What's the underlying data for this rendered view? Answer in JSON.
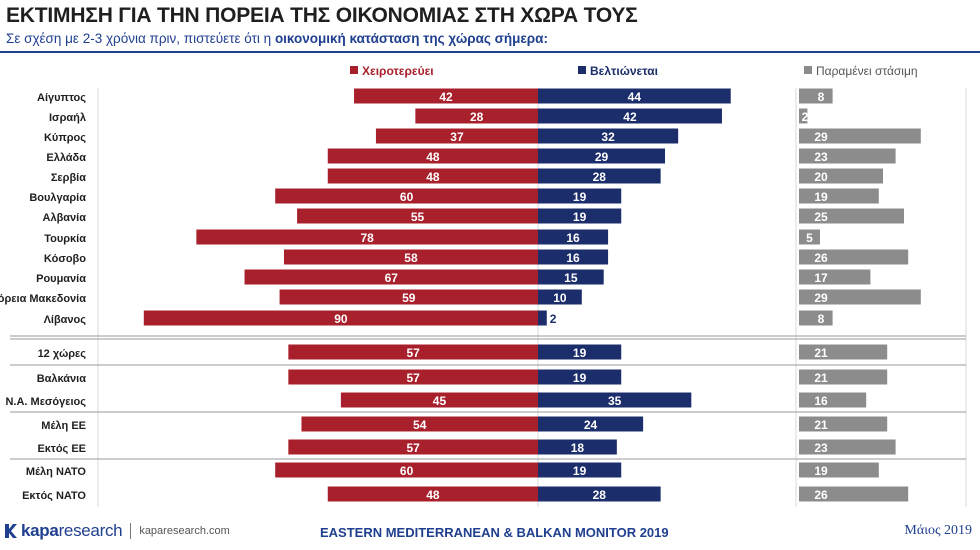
{
  "header": {
    "title": "ΕΚΤΙΜΗΣΗ ΓΙΑ ΤΗΝ ΠΟΡΕΙΑ ΤΗΣ ΟΙΚΟΝΟΜΙΑΣ ΣΤΗ ΧΩΡΑ ΤΟΥΣ",
    "subtitle_plain": "Σε σχέση με 2-3 χρόνια πριν, πιστεύετε ότι η ",
    "subtitle_bold": "οικονομική κατάσταση της χώρας σήμερα:"
  },
  "footer": {
    "logo_bold": "kapa",
    "logo_light": "research",
    "website": "kaparesearch.com",
    "center": "EASTERN MEDITERRANEAN & BALKAN MONITOR 2019",
    "date": "Μάιος 2019"
  },
  "colors": {
    "worse": "#a8202b",
    "better": "#1b2d6b",
    "same": "#8c8c8c",
    "grid": "#d9d9d9",
    "text": "#1f1f1f"
  },
  "chart_data": {
    "type": "bar",
    "orientation": "horizontal",
    "layout": "diverging with separate third panel",
    "categories": [
      "Αίγυπτος",
      "Ισραήλ",
      "Κύπρος",
      "Ελλάδα",
      "Σερβία",
      "Βουλγαρία",
      "Αλβανία",
      "Τουρκία",
      "Κόσοβο",
      "Ρουμανία",
      "Βόρεια Μακεδονία",
      "Λίβανος",
      "12 χώρες",
      "Βαλκάνια",
      "Ν.Α. Μεσόγειος",
      "Μέλη ΕΕ",
      "Εκτός ΕΕ",
      "Μέλη ΝΑΤΟ",
      "Εκτός ΝΑΤΟ"
    ],
    "series": [
      {
        "name": "Χειροτερεύει",
        "values": [
          42,
          28,
          37,
          48,
          48,
          60,
          55,
          78,
          58,
          67,
          59,
          90,
          57,
          57,
          45,
          54,
          57,
          60,
          48
        ]
      },
      {
        "name": "Βελτιώνεται",
        "values": [
          44,
          42,
          32,
          29,
          28,
          19,
          19,
          16,
          16,
          15,
          10,
          2,
          19,
          19,
          35,
          24,
          18,
          19,
          28
        ]
      },
      {
        "name": "Παραμένει στάσιμη",
        "values": [
          8,
          2,
          29,
          23,
          20,
          19,
          25,
          5,
          26,
          17,
          29,
          8,
          21,
          21,
          16,
          21,
          23,
          19,
          26
        ]
      }
    ],
    "group_breaks_after": [
      "Λίβανος",
      "12 χώρες",
      "Ν.Α. Μεσόγειος",
      "Εκτός ΕΕ"
    ],
    "data_labels": true,
    "legend_position": "top",
    "grid": true
  }
}
